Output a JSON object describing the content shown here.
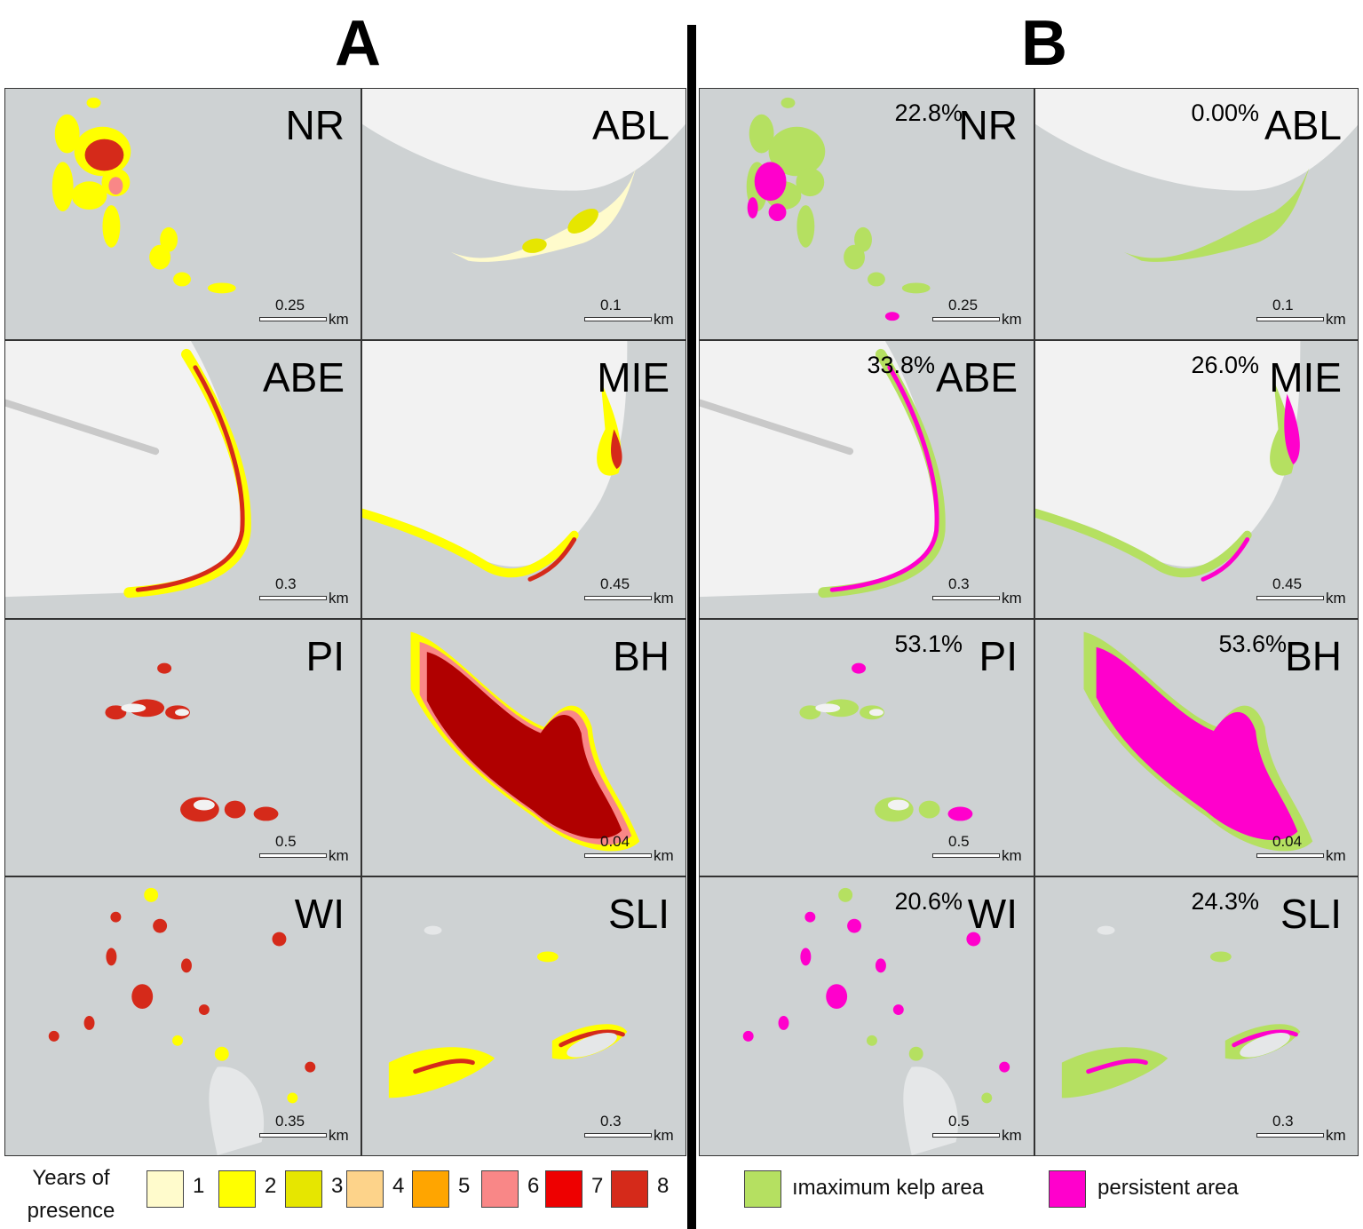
{
  "panels": {
    "a": "A",
    "b": "B"
  },
  "scale_unit": "km",
  "colors": {
    "water": "#ced2d3",
    "land": "#f2f2f2",
    "max_kelp": "#b5e061",
    "persistent": "#ff00cc",
    "years": [
      "#fffbcc",
      "#ffff00",
      "#e6e600",
      "#fdd38a",
      "#ffa500",
      "#f98787",
      "#ee0000",
      "#d52a1a"
    ]
  },
  "sites": [
    {
      "name": "NR",
      "scale": "0.25",
      "persistent_pct": "22.8%"
    },
    {
      "name": "ABL",
      "scale": "0.1",
      "persistent_pct": "0.00%"
    },
    {
      "name": "ABE",
      "scale": "0.3",
      "persistent_pct": "33.8%"
    },
    {
      "name": "MIE",
      "scale": "0.45",
      "persistent_pct": "26.0%"
    },
    {
      "name": "PI",
      "scale": "0.5",
      "persistent_pct": "53.1%"
    },
    {
      "name": "BH",
      "scale": "0.04",
      "persistent_pct": "53.6%"
    },
    {
      "name": "WI",
      "scale": "0.35",
      "scale_b": "0.5",
      "persistent_pct": "20.6%"
    },
    {
      "name": "SLI",
      "scale": "0.3",
      "persistent_pct": "24.3%"
    }
  ],
  "legend_a": {
    "title": "Years of presence",
    "items": [
      "1",
      "2",
      "3",
      "4",
      "5",
      "6",
      "7",
      "8"
    ]
  },
  "legend_b": {
    "items": [
      {
        "label": "maximum kelp area",
        "prefix": "ı"
      },
      {
        "label": "persistent area"
      }
    ]
  }
}
